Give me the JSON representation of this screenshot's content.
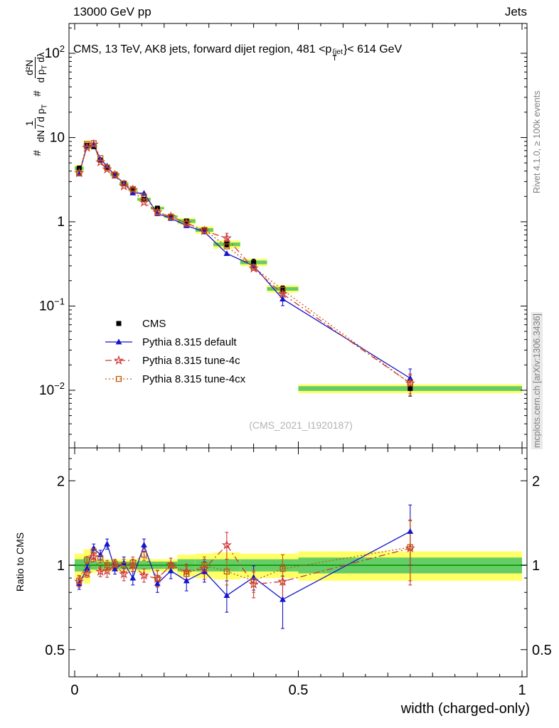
{
  "header": {
    "left": "13000 GeV pp",
    "right": "Jets"
  },
  "title": {
    "prefix": "CMS, 13 TeV, AK8 jets, forward dijet region, 481 <p",
    "sup": "{jet",
    "sub": "T",
    "suffix": "}< 614 GeV"
  },
  "watermark": "(CMS_2021_I1920187)",
  "sidebar_right": {
    "top": "Rivet 4.1.0, ≥ 100k events",
    "bottom": "mcplots.cern.ch [arXiv:1306.3436]"
  },
  "ylabel": {
    "hash1": "#",
    "frac1_num": "1",
    "frac1_den": "dN / d p",
    "frac1_den_sub": "T",
    "hash2": "#",
    "frac2_num": "d²N",
    "frac2_den_a": "d p",
    "frac2_den_a_sub": "T",
    "frac2_den_b": " dλ"
  },
  "ratio_ylabel": "Ratio to CMS",
  "xlabel": "width (charged-only)",
  "legend": {
    "items": [
      {
        "label": "CMS"
      },
      {
        "label": "Pythia 8.315 default"
      },
      {
        "label": "Pythia 8.315 tune-4c"
      },
      {
        "label": "Pythia 8.315 tune-4cx"
      }
    ]
  },
  "chart_data": {
    "type": "line",
    "title": "CMS, 13 TeV, AK8 jets, forward dijet region, 481 < pT(jet) < 614 GeV",
    "xlabel": "width (charged-only)",
    "ylabel": "# 1/(dN/dpT) # d2N/(dpT dlambda)",
    "ratio_ylabel": "Ratio to CMS",
    "x": [
      0.01,
      0.0275,
      0.0425,
      0.0575,
      0.0725,
      0.09,
      0.11,
      0.13,
      0.155,
      0.185,
      0.215,
      0.25,
      0.29,
      0.34,
      0.4,
      0.465,
      0.75
    ],
    "bin_edges": [
      0,
      0.02,
      0.035,
      0.05,
      0.065,
      0.08,
      0.1,
      0.12,
      0.14,
      0.17,
      0.2,
      0.23,
      0.27,
      0.31,
      0.37,
      0.43,
      0.5,
      1.0
    ],
    "xlim": [
      -0.0127,
      1.0111
    ],
    "main_ylim": [
      0.00207,
      226
    ],
    "ratio_ylim": [
      0.4,
      2.62
    ],
    "xticks": [
      {
        "v": 0,
        "label": "0"
      },
      {
        "v": 0.5,
        "label": "0.5"
      },
      {
        "v": 1,
        "label": "1"
      }
    ],
    "yticks_main": [
      {
        "v": 100,
        "base": "10",
        "exp": "2"
      },
      {
        "v": 10,
        "base": "10",
        "exp": ""
      },
      {
        "v": 1,
        "base": "1",
        "exp": ""
      },
      {
        "v": 0.1,
        "base": "10",
        "exp": "−1"
      },
      {
        "v": 0.01,
        "base": "10",
        "exp": "−2"
      }
    ],
    "ratio_yticks": [
      {
        "v": 2,
        "label": "2"
      },
      {
        "v": 1,
        "label": "1"
      },
      {
        "v": 0.5,
        "label": "0.5"
      }
    ],
    "series": [
      {
        "name": "CMS",
        "color": "#000000",
        "marker": "square-filled",
        "line": "none",
        "values": [
          4.3,
          8.1,
          7.8,
          5.4,
          4.4,
          3.6,
          2.85,
          2.4,
          1.85,
          1.45,
          1.15,
          1.02,
          0.8,
          0.54,
          0.33,
          0.16,
          0.0105
        ],
        "errors": [
          0.3,
          0.3,
          0.3,
          0.25,
          0.2,
          0.15,
          0.12,
          0.1,
          0.08,
          0.07,
          0.06,
          0.05,
          0.05,
          0.04,
          0.03,
          0.012,
          0.002
        ]
      },
      {
        "name": "Pythia 8.315 default",
        "color": "#1515cc",
        "marker": "triangle-filled",
        "line": "solid",
        "values": [
          3.7,
          7.9,
          8.2,
          5.5,
          4.6,
          3.5,
          2.9,
          2.2,
          2.18,
          1.25,
          1.1,
          0.9,
          0.76,
          0.42,
          0.3,
          0.121,
          0.0139
        ],
        "errors": [
          0,
          0,
          0,
          0,
          0,
          0,
          0,
          0,
          0,
          0,
          0,
          0,
          0,
          0,
          0,
          0.02,
          0.004
        ]
      },
      {
        "name": "Pythia 8.315 tune-4c",
        "color": "#d23535",
        "marker": "star-open",
        "line": "dashdot",
        "values": [
          3.8,
          7.6,
          8.3,
          5.1,
          4.2,
          3.6,
          2.65,
          2.4,
          1.7,
          1.3,
          1.15,
          0.97,
          0.78,
          0.64,
          0.28,
          0.139,
          0.0121
        ],
        "errors": [
          0,
          0,
          0,
          0,
          0,
          0,
          0,
          0,
          0,
          0,
          0,
          0,
          0,
          0.09,
          0,
          0.018,
          0.0035
        ]
      },
      {
        "name": "Pythia 8.315 tune-4cx",
        "color": "#bf5b10",
        "marker": "square-open",
        "line": "dotted",
        "values": [
          3.8,
          8.4,
          8.6,
          5.7,
          4.4,
          3.64,
          2.85,
          2.45,
          2.0,
          1.3,
          1.15,
          0.95,
          0.8,
          0.51,
          0.29,
          0.155,
          0.0121
        ],
        "errors": [
          0,
          0,
          0,
          0,
          0,
          0,
          0,
          0,
          0,
          0,
          0,
          0,
          0,
          0,
          0,
          0.02,
          0.003
        ]
      }
    ],
    "ratio": {
      "series": [
        {
          "name": "Pythia 8.315 default",
          "values": [
            0.86,
            0.975,
            1.15,
            1.09,
            1.19,
            0.97,
            1.02,
            0.9,
            1.18,
            0.86,
            0.955,
            0.88,
            0.95,
            0.78,
            0.905,
            0.755,
            1.32
          ],
          "errors": [
            0.04,
            0.03,
            0.04,
            0.04,
            0.05,
            0.04,
            0.05,
            0.05,
            0.06,
            0.06,
            0.06,
            0.07,
            0.08,
            0.1,
            0.09,
            0.16,
            0.32
          ]
        },
        {
          "name": "Pythia 8.315 tune-4c",
          "values": [
            0.875,
            0.935,
            1.07,
            0.95,
            0.955,
            1.0,
            0.93,
            1.0,
            0.92,
            0.895,
            1.0,
            0.95,
            0.97,
            1.18,
            0.855,
            0.875,
            1.15
          ],
          "errors": [
            0.04,
            0.03,
            0.04,
            0.04,
            0.05,
            0.04,
            0.05,
            0.05,
            0.05,
            0.06,
            0.06,
            0.06,
            0.08,
            0.13,
            0.09,
            0.13,
            0.3
          ]
        },
        {
          "name": "Pythia 8.315 tune-4cx",
          "values": [
            0.88,
            1.045,
            1.12,
            1.06,
            1.0,
            1.01,
            1.0,
            1.02,
            1.09,
            0.9,
            1.0,
            0.93,
            1.0,
            0.95,
            0.88,
            0.97,
            1.16
          ],
          "errors": [
            0.04,
            0.03,
            0.04,
            0.04,
            0.04,
            0.04,
            0.05,
            0.05,
            0.05,
            0.06,
            0.06,
            0.06,
            0.07,
            0.1,
            0.08,
            0.12,
            0.28
          ]
        }
      ],
      "band_yellow_half": [
        0.1,
        0.14,
        0.06,
        0.05,
        0.05,
        0.05,
        0.05,
        0.05,
        0.06,
        0.05,
        0.05,
        0.09,
        0.1,
        0.11,
        0.1,
        0.1,
        0.12
      ],
      "band_green_half": [
        0.05,
        0.06,
        0.035,
        0.03,
        0.03,
        0.03,
        0.03,
        0.03,
        0.035,
        0.03,
        0.03,
        0.05,
        0.05,
        0.05,
        0.05,
        0.05,
        0.065
      ],
      "colors": {
        "yellow": "#ffff66",
        "green": "#66cc66",
        "center": "#009900"
      }
    }
  }
}
